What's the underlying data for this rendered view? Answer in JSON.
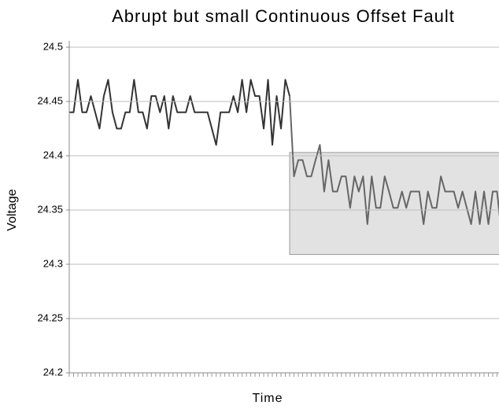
{
  "chart_data": {
    "type": "line",
    "title": "Abrupt but small Continuous Offset Fault",
    "x_label": "Time",
    "y_label": "Voltage",
    "values": [
      24.44,
      24.44,
      24.47,
      24.44,
      24.44,
      24.455,
      24.44,
      24.425,
      24.455,
      24.47,
      24.44,
      24.425,
      24.425,
      24.44,
      24.44,
      24.47,
      24.44,
      24.44,
      24.425,
      24.455,
      24.455,
      24.44,
      24.455,
      24.425,
      24.455,
      24.44,
      24.44,
      24.44,
      24.455,
      24.44,
      24.44,
      24.44,
      24.44,
      24.425,
      24.41,
      24.44,
      24.44,
      24.44,
      24.455,
      24.44,
      24.47,
      24.44,
      24.47,
      24.455,
      24.455,
      24.425,
      24.47,
      24.41,
      24.455,
      24.425,
      24.47,
      24.455,
      24.381,
      24.396,
      24.396,
      24.381,
      24.381,
      24.396,
      24.41,
      24.367,
      24.396,
      24.367,
      24.367,
      24.381,
      24.381,
      24.352,
      24.381,
      24.367,
      24.381,
      24.337,
      24.381,
      24.352,
      24.352,
      24.381,
      24.367,
      24.352,
      24.352,
      24.367,
      24.352,
      24.367,
      24.367,
      24.367,
      24.337,
      24.367,
      24.352,
      24.352,
      24.381,
      24.367,
      24.367,
      24.367,
      24.352,
      24.367,
      24.352,
      24.337,
      24.367,
      24.337,
      24.367,
      24.337,
      24.367,
      24.367,
      24.33
    ],
    "fault_index": 52,
    "colors": [
      "#333333",
      "#666666"
    ],
    "highlight": {
      "from_index": 51,
      "ylim": [
        24.309,
        24.403
      ],
      "color": "#e2e2e2"
    },
    "ylim": [
      24.2,
      24.5
    ],
    "yticks": [
      24.2,
      24.25,
      24.3,
      24.35,
      24.4,
      24.45,
      24.5
    ],
    "grid": true
  }
}
